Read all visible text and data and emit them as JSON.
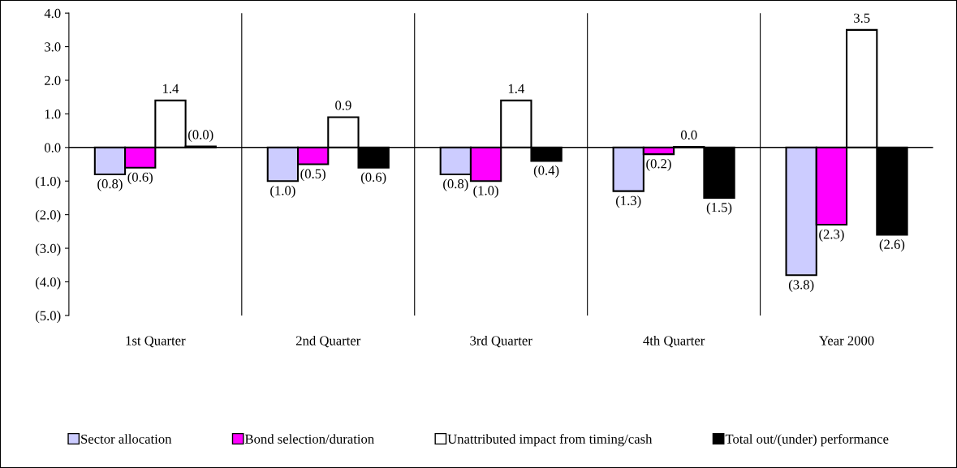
{
  "chart_data": {
    "type": "bar",
    "categories": [
      "1st Quarter",
      "2nd Quarter",
      "3rd Quarter",
      "4th Quarter",
      "Year 2000"
    ],
    "series": [
      {
        "name": "Sector allocation",
        "color": "#ccccff",
        "values": [
          -0.8,
          -1.0,
          -0.8,
          -1.3,
          -3.8
        ],
        "value_labels": [
          "(0.8)",
          "(1.0)",
          "(0.8)",
          "(1.3)",
          "(3.8)"
        ]
      },
      {
        "name": "Bond selection/duration",
        "color": "#ff00ff",
        "values": [
          -0.6,
          -0.5,
          -1.0,
          -0.2,
          -2.3
        ],
        "value_labels": [
          "(0.6)",
          "(0.5)",
          "(1.0)",
          "(0.2)",
          "(2.3)"
        ]
      },
      {
        "name": "Unattributed impact from timing/cash",
        "color": "#ffffff",
        "values": [
          1.4,
          0.9,
          1.4,
          0.02,
          3.5
        ],
        "value_labels": [
          "1.4",
          "0.9",
          "1.4",
          "0.0",
          "3.5"
        ]
      },
      {
        "name": "Total out/(under) performance",
        "color": "#000000",
        "values": [
          0.03,
          -0.6,
          -0.4,
          -1.5,
          -2.6
        ],
        "value_labels": [
          "(0.0)",
          "(0.6)",
          "(0.4)",
          "(1.5)",
          "(2.6)"
        ]
      }
    ],
    "ylim": [
      -5,
      4
    ],
    "yticks": [
      {
        "value": 4,
        "label": "4.0"
      },
      {
        "value": 3,
        "label": "3.0"
      },
      {
        "value": 2,
        "label": "2.0"
      },
      {
        "value": 1,
        "label": "1.0"
      },
      {
        "value": 0,
        "label": "0.0"
      },
      {
        "value": -1,
        "label": "(1.0)"
      },
      {
        "value": -2,
        "label": "(2.0)"
      },
      {
        "value": -3,
        "label": "(3.0)"
      },
      {
        "value": -4,
        "label": "(4.0)"
      },
      {
        "value": -5,
        "label": "(5.0)"
      }
    ],
    "grid": "x",
    "legend": "bottom"
  }
}
